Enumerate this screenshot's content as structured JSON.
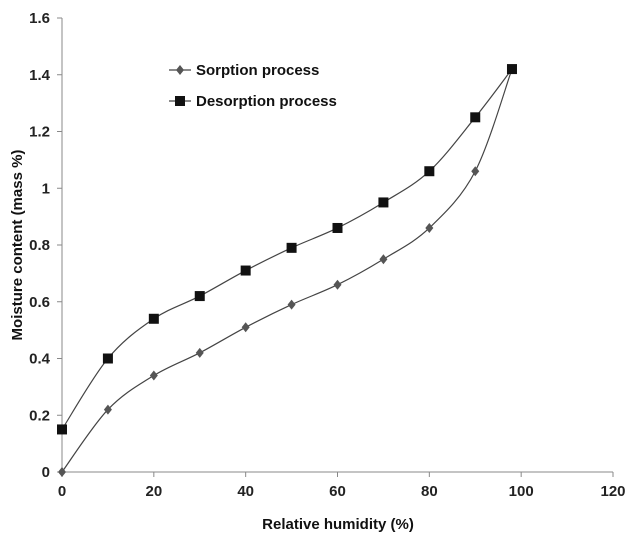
{
  "chart_data": {
    "type": "line",
    "title": "",
    "xlabel": "Relative humidity (%)",
    "ylabel": "Moisture content (mass %)",
    "xlim": [
      0,
      120
    ],
    "ylim": [
      0,
      1.6
    ],
    "x_ticks": [
      "0",
      "20",
      "40",
      "60",
      "80",
      "100",
      "120"
    ],
    "y_ticks": [
      "0",
      "0.2",
      "0.4",
      "0.6",
      "0.8",
      "1",
      "1.2",
      "1.4",
      "1.6"
    ],
    "grid": false,
    "legend_position": "top-left",
    "series": [
      {
        "name": "Sorption process",
        "marker": "diamond",
        "color": "#555555",
        "x": [
          0,
          10,
          20,
          30,
          40,
          50,
          60,
          70,
          80,
          90,
          98
        ],
        "y": [
          0.0,
          0.22,
          0.34,
          0.42,
          0.51,
          0.59,
          0.66,
          0.75,
          0.86,
          1.06,
          1.42
        ]
      },
      {
        "name": "Desorption process",
        "marker": "square",
        "color": "#111111",
        "x": [
          0,
          10,
          20,
          30,
          40,
          50,
          60,
          70,
          80,
          90,
          98
        ],
        "y": [
          0.15,
          0.4,
          0.54,
          0.62,
          0.71,
          0.79,
          0.86,
          0.95,
          1.06,
          1.25,
          1.42
        ]
      }
    ]
  }
}
